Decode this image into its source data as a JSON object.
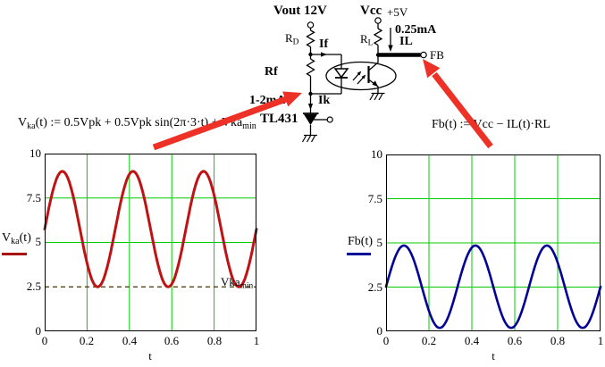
{
  "colors": {
    "grid": "#00cc00",
    "curve_left": "#c01212",
    "curve_right": "#000099",
    "marker_dashed": "#443300",
    "arrow": "#ee3126",
    "legend_left": "#aa1111",
    "legend_right": "#000099",
    "wire": "#000000"
  },
  "circuit": {
    "vout": "Vout 12V",
    "vcc": "Vcc",
    "vcc_supply": "+5V",
    "rd_main": "R",
    "rd_sub": "D",
    "if_label": "If",
    "rl_main": "R",
    "rl_sub": "L",
    "il_value": "0.25mA",
    "il_label": "IL",
    "fb_label": "FB",
    "rf_label": "Rf",
    "ik_value": "1-2mA",
    "ik_label": "Ik",
    "tl431": "TL431"
  },
  "formulas": {
    "vka_pre": "V",
    "vka_sub": "ka",
    "vka_body": "(t) := 0.5Vpk + 0.5Vpk sin(2π·3·t) + Vka",
    "vka_min_sub": "min",
    "fb": "Fb(t) := Vcc − IL(t)·RL"
  },
  "left_plot": {
    "ylabel_pre": "V",
    "ylabel_sub": "ka",
    "ylabel_post": "(t)",
    "yticks": [
      "10",
      "7.5",
      "5",
      "2.5",
      "0"
    ],
    "xticks": [
      "0",
      "0.2",
      "0.4",
      "0.6",
      "0.8",
      "1"
    ],
    "xlabel": "t",
    "marker_main": "Vka",
    "marker_sub": "min"
  },
  "right_plot": {
    "ylabel": "Fb(t)",
    "yticks": [
      "10",
      "7.5",
      "5",
      "2.5",
      "0"
    ],
    "xticks": [
      "0",
      "0.2",
      "0.4",
      "0.6",
      "0.8",
      "1"
    ],
    "xlabel": "t"
  },
  "chart_data": [
    {
      "id": "vka",
      "type": "line",
      "title": "",
      "ylabel": "Vka(t)",
      "xlabel": "t",
      "color": "#c01212",
      "stroke_width": 3,
      "x_range": [
        0,
        1
      ],
      "ylim": [
        0,
        10
      ],
      "xticks": [
        0,
        0.2,
        0.4,
        0.6,
        0.8,
        1
      ],
      "yticks": [
        0,
        2.5,
        5,
        7.5,
        10
      ],
      "grid_x": [
        0.2,
        0.4,
        0.6,
        0.8
      ],
      "grid_y": [
        5,
        7.5
      ],
      "function": "Vka(t) = 5.75 + 3.25*sin(2*pi*3*t)",
      "offset": 5.75,
      "amplitude": 3.25,
      "frequency_hz": 3,
      "phase": 0,
      "min": 2.5,
      "max": 9,
      "marker": {
        "value": 2.5,
        "label": "Vka_min",
        "style": "dashed"
      }
    },
    {
      "id": "fb",
      "type": "line",
      "title": "",
      "ylabel": "Fb(t)",
      "xlabel": "t",
      "color": "#000099",
      "stroke_width": 2.6,
      "x_range": [
        0,
        1
      ],
      "ylim": [
        0,
        10
      ],
      "xticks": [
        0,
        0.2,
        0.4,
        0.6,
        0.8,
        1
      ],
      "yticks": [
        0,
        2.5,
        5,
        7.5,
        10
      ],
      "grid_x": [
        0.2,
        0.4,
        0.6,
        0.8
      ],
      "grid_y": [
        2.5,
        5,
        7.5
      ],
      "function": "Fb(t) = 2.52 + 2.33*sin(2*pi*3*t)",
      "offset": 2.52,
      "amplitude": 2.33,
      "frequency_hz": 3,
      "phase": 0,
      "min": 0.19,
      "max": 4.85
    }
  ]
}
